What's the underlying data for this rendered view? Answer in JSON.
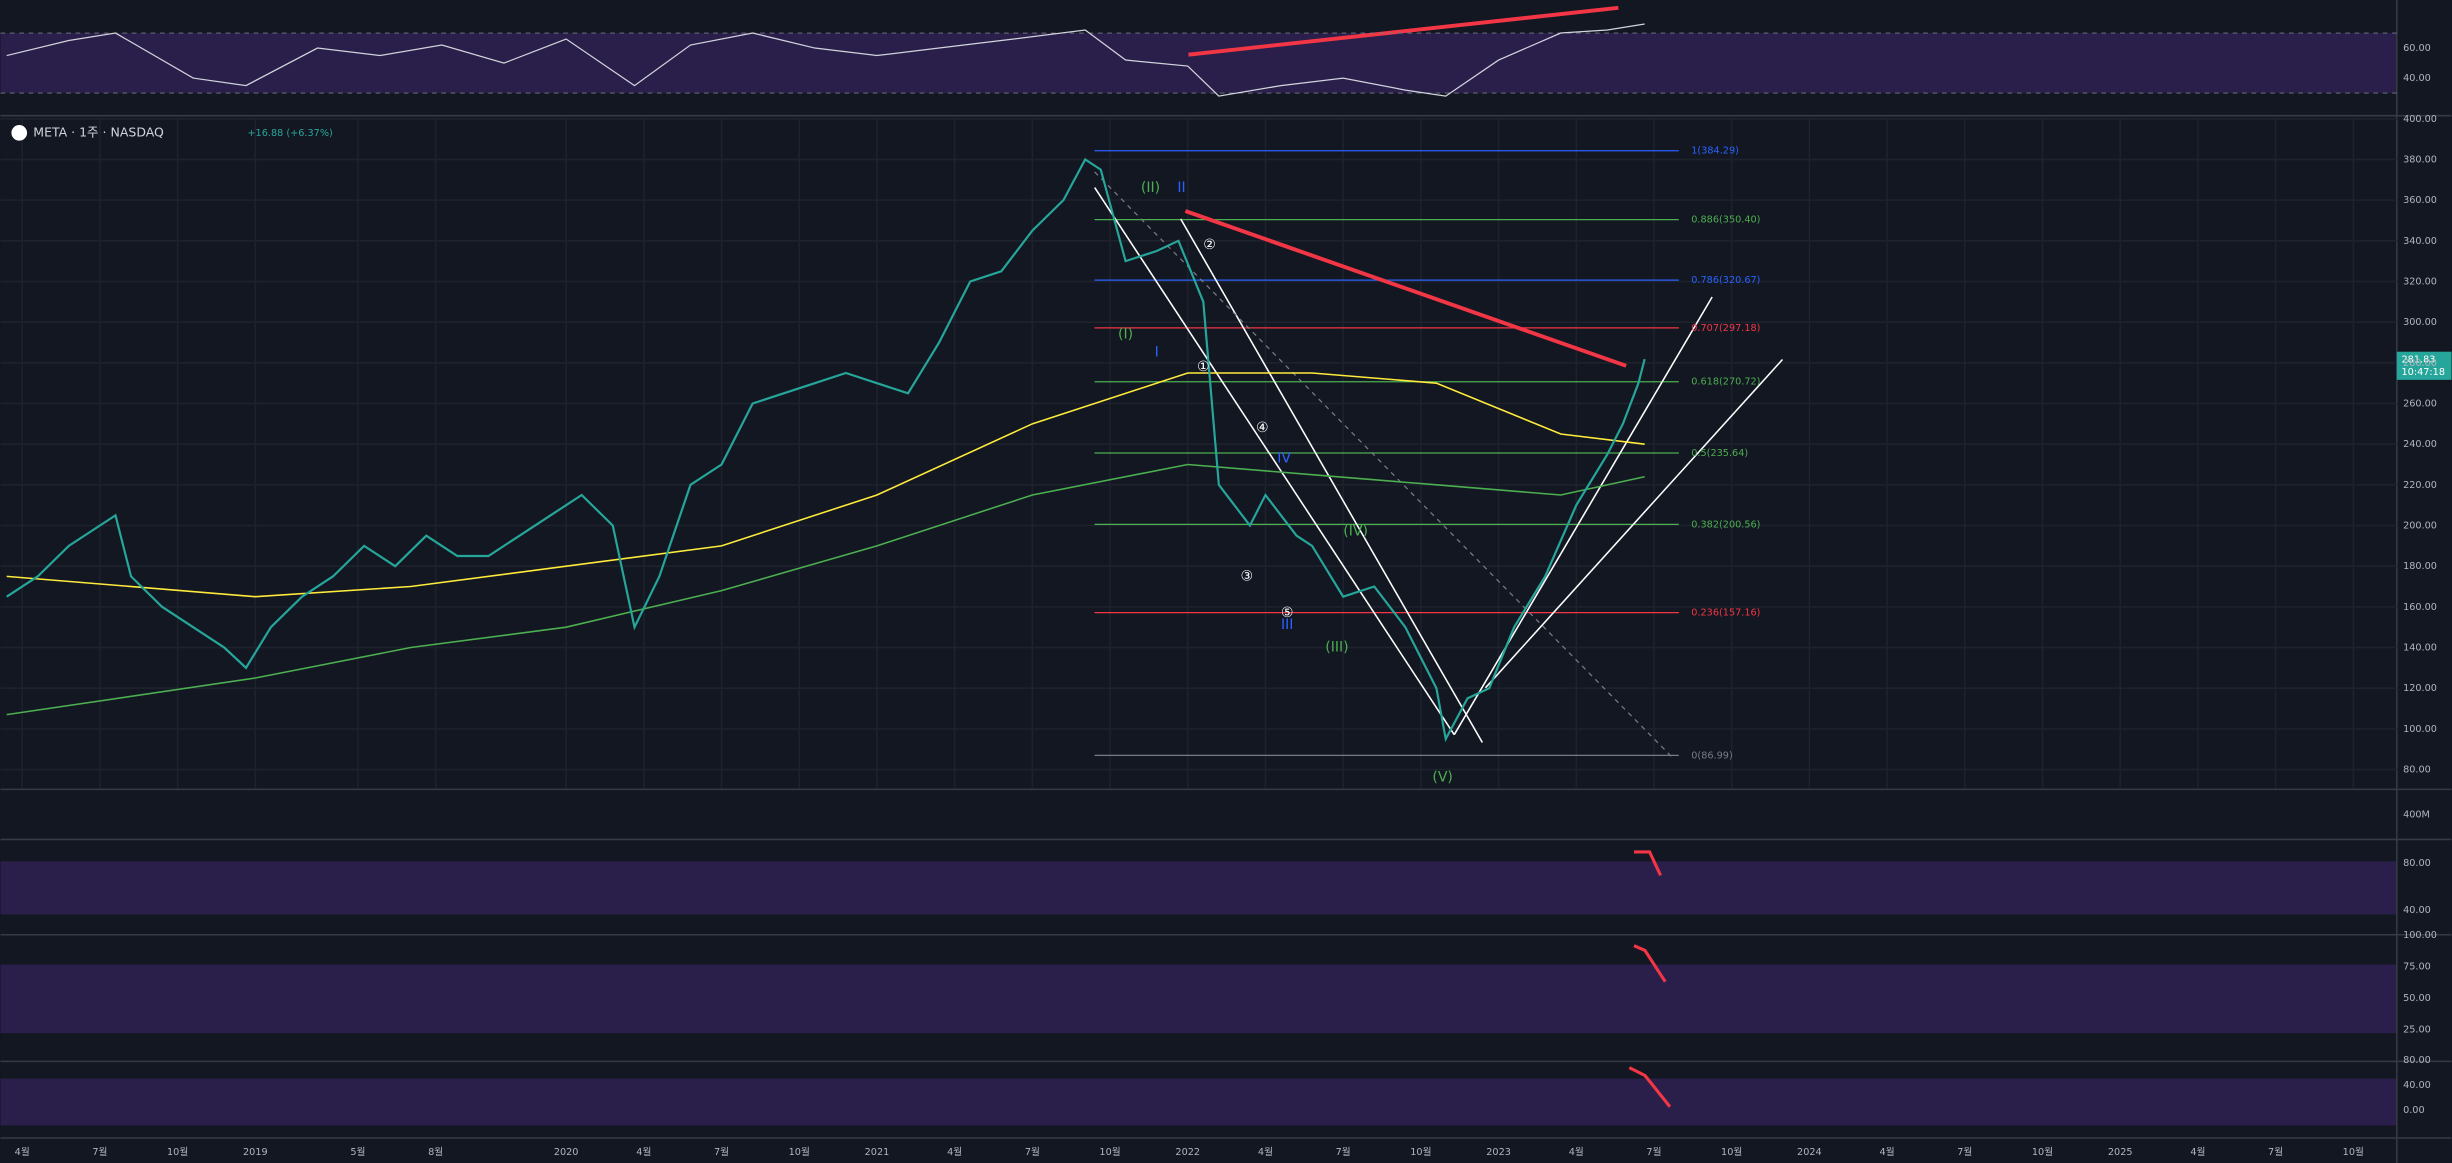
{
  "chart_data": {
    "type": "line",
    "header": {
      "symbol": "META · 1주 · NASDAQ",
      "change": "+16.88 (+6.37%)"
    },
    "last_price": {
      "value": 281.83,
      "label": "281.83",
      "time": "10:47:18"
    },
    "x": [
      2018.2,
      2018.3,
      2018.4,
      2018.5,
      2018.55,
      2018.6,
      2018.7,
      2018.8,
      2018.9,
      2018.97,
      2019.05,
      2019.15,
      2019.25,
      2019.35,
      2019.45,
      2019.55,
      2019.65,
      2019.75,
      2019.85,
      2019.95,
      2020.05,
      2020.15,
      2020.22,
      2020.3,
      2020.4,
      2020.5,
      2020.6,
      2020.7,
      2020.8,
      2020.9,
      2021.0,
      2021.1,
      2021.2,
      2021.3,
      2021.4,
      2021.5,
      2021.6,
      2021.67,
      2021.72,
      2021.8,
      2021.9,
      2021.97,
      2022.05,
      2022.1,
      2022.2,
      2022.25,
      2022.35,
      2022.4,
      2022.5,
      2022.6,
      2022.7,
      2022.8,
      2022.83,
      2022.9,
      2022.97,
      2023.05,
      2023.15,
      2023.25,
      2023.35,
      2023.4,
      2023.45,
      2023.47
    ],
    "series": [
      {
        "color": "#26a69a",
        "values": [
          165,
          175,
          190,
          200,
          205,
          175,
          160,
          150,
          140,
          130,
          150,
          165,
          175,
          190,
          180,
          195,
          185,
          185,
          195,
          205,
          215,
          200,
          150,
          175,
          220,
          230,
          260,
          265,
          270,
          275,
          270,
          265,
          290,
          320,
          325,
          345,
          360,
          380,
          375,
          330,
          335,
          340,
          310,
          220,
          200,
          215,
          195,
          190,
          165,
          170,
          150,
          120,
          95,
          115,
          120,
          150,
          175,
          210,
          235,
          250,
          270,
          281.83
        ]
      }
    ],
    "moving_averages": [
      {
        "color": "#ffeb3b",
        "x": [
          2018.2,
          2019.0,
          2019.5,
          2020.0,
          2020.5,
          2021.0,
          2021.5,
          2022.0,
          2022.4,
          2022.8,
          2023.2,
          2023.47
        ],
        "values": [
          175,
          165,
          170,
          180,
          190,
          215,
          250,
          275,
          275,
          270,
          245,
          240
        ]
      },
      {
        "color": "#4caf50",
        "x": [
          2018.2,
          2019.0,
          2019.5,
          2020.0,
          2020.5,
          2021.0,
          2021.5,
          2022.0,
          2022.4,
          2022.8,
          2023.2,
          2023.47
        ],
        "values": [
          107,
          125,
          140,
          150,
          168,
          190,
          215,
          230,
          225,
          220,
          215,
          224
        ]
      }
    ],
    "fib_levels": [
      {
        "label": "1(384.29)",
        "value": 384.29,
        "color": "#2962ff"
      },
      {
        "label": "0.886(350.40)",
        "value": 350.4,
        "color": "#4caf50"
      },
      {
        "label": "0.786(320.67)",
        "value": 320.67,
        "color": "#2962ff"
      },
      {
        "label": "0.707(297.18)",
        "value": 297.18,
        "color": "#f23645"
      },
      {
        "label": "0.618(270.72)",
        "value": 270.72,
        "color": "#4caf50"
      },
      {
        "label": "0.5(235.64)",
        "value": 235.64,
        "color": "#4caf50"
      },
      {
        "label": "0.382(200.56)",
        "value": 200.56,
        "color": "#4caf50"
      },
      {
        "label": "0.236(157.16)",
        "value": 157.16,
        "color": "#f23645"
      },
      {
        "label": "0(86.99)",
        "value": 86.99,
        "color": "#787b86"
      }
    ],
    "annotations": [
      {
        "text": "(II)",
        "x": 2021.88,
        "y": 366,
        "color": "#4caf50"
      },
      {
        "text": "(I)",
        "x": 2021.8,
        "y": 294,
        "color": "#4caf50"
      },
      {
        "text": "II",
        "x": 2021.98,
        "y": 366,
        "color": "#2962ff"
      },
      {
        "text": "I",
        "x": 2021.9,
        "y": 285,
        "color": "#2962ff"
      },
      {
        "text": "①",
        "x": 2022.05,
        "y": 278,
        "color": "#ffffff"
      },
      {
        "text": "②",
        "x": 2022.07,
        "y": 338,
        "color": "#ffffff"
      },
      {
        "text": "④",
        "x": 2022.24,
        "y": 248,
        "color": "#ffffff"
      },
      {
        "text": "③",
        "x": 2022.19,
        "y": 175,
        "color": "#ffffff"
      },
      {
        "text": "⑤",
        "x": 2022.32,
        "y": 157,
        "color": "#ffffff"
      },
      {
        "text": "IV",
        "x": 2022.31,
        "y": 233,
        "color": "#2962ff"
      },
      {
        "text": "III",
        "x": 2022.32,
        "y": 151,
        "color": "#2962ff"
      },
      {
        "text": "(IV)",
        "x": 2022.54,
        "y": 197,
        "color": "#4caf50"
      },
      {
        "text": "(III)",
        "x": 2022.48,
        "y": 140,
        "color": "#4caf50"
      },
      {
        "text": "(V)",
        "x": 2022.82,
        "y": 76,
        "color": "#4caf50"
      }
    ],
    "xlim": [
      2018.18,
      2025.89
    ],
    "xticks": [
      {
        "value": 2018.25,
        "label": "4월"
      },
      {
        "value": 2018.5,
        "label": "7월"
      },
      {
        "value": 2018.75,
        "label": "10월"
      },
      2019,
      {
        "value": 2019.33,
        "label": "5월"
      },
      {
        "value": 2019.58,
        "label": "8월"
      },
      2020,
      {
        "value": 2020.25,
        "label": "4월"
      },
      {
        "value": 2020.5,
        "label": "7월"
      },
      {
        "value": 2020.75,
        "label": "10월"
      },
      2021,
      {
        "value": 2021.25,
        "label": "4월"
      },
      {
        "value": 2021.5,
        "label": "7월"
      },
      {
        "value": 2021.75,
        "label": "10월"
      },
      2022,
      {
        "value": 2022.25,
        "label": "4월"
      },
      {
        "value": 2022.5,
        "label": "7월"
      },
      {
        "value": 2022.75,
        "label": "10월"
      },
      2023,
      {
        "value": 2023.25,
        "label": "4월"
      },
      {
        "value": 2023.5,
        "label": "7월"
      },
      {
        "value": 2023.75,
        "label": "10월"
      },
      2024,
      {
        "value": 2024.25,
        "label": "4월"
      },
      {
        "value": 2024.5,
        "label": "7월"
      },
      {
        "value": 2024.75,
        "label": "10월"
      },
      2025,
      {
        "value": 2025.25,
        "label": "4월"
      },
      {
        "value": 2025.5,
        "label": "7월"
      },
      {
        "value": 2025.75,
        "label": "10월"
      }
    ],
    "ylim": [
      71,
      400
    ],
    "yticks": [
      {
        "value": 80,
        "label": "80.00"
      },
      {
        "value": 100,
        "label": "100.00"
      },
      {
        "value": 120,
        "label": "120.00"
      },
      {
        "value": 140,
        "label": "140.00"
      },
      {
        "value": 160,
        "label": "160.00"
      },
      {
        "value": 180,
        "label": "180.00"
      },
      {
        "value": 200,
        "label": "200.00"
      },
      {
        "value": 220,
        "label": "220.00"
      },
      {
        "value": 240,
        "label": "240.00"
      },
      {
        "value": 260,
        "label": "260.00"
      },
      {
        "value": 280,
        "label": "280.00"
      },
      {
        "value": 300,
        "label": "300.00"
      },
      {
        "value": 320,
        "label": "320.00"
      },
      {
        "value": 340,
        "label": "340.00"
      },
      {
        "value": 360,
        "label": "360.00"
      },
      {
        "value": 380,
        "label": "380.00"
      },
      {
        "value": 400,
        "label": "400.00"
      }
    ],
    "rsi": {
      "x": [
        2018.2,
        2018.4,
        2018.55,
        2018.8,
        2018.97,
        2019.2,
        2019.4,
        2019.6,
        2019.8,
        2020.0,
        2020.22,
        2020.4,
        2020.6,
        2020.8,
        2021.0,
        2021.2,
        2021.4,
        2021.67,
        2021.8,
        2022.0,
        2022.1,
        2022.3,
        2022.5,
        2022.7,
        2022.83,
        2023.0,
        2023.2,
        2023.35,
        2023.47
      ],
      "values": [
        55,
        65,
        70,
        40,
        35,
        60,
        55,
        62,
        50,
        66,
        35,
        62,
        70,
        60,
        55,
        60,
        65,
        72,
        52,
        48,
        28,
        35,
        40,
        32,
        28,
        52,
        70,
        72,
        76
      ],
      "ylim": [
        16,
        92
      ],
      "yticks": [
        {
          "value": 40,
          "label": "40.00"
        },
        {
          "value": 60,
          "label": "60.00"
        }
      ],
      "band": [
        30,
        70
      ]
    },
    "volume_label": "400M",
    "panel3_ticks": [
      {
        "value": 80,
        "label": "80.00"
      },
      {
        "value": 40,
        "label": "40.00"
      }
    ],
    "panel4_ticks": [
      {
        "value": 100,
        "label": "100.00"
      },
      {
        "value": 75,
        "label": "75.00"
      },
      {
        "value": 50,
        "label": "50.00"
      },
      {
        "value": 25,
        "label": "25.00"
      }
    ],
    "panel5_ticks": [
      {
        "value": 0,
        "label": "0.00"
      },
      {
        "value": 80,
        "label": "80.00"
      },
      {
        "value": 40,
        "label": "40.00"
      }
    ]
  }
}
